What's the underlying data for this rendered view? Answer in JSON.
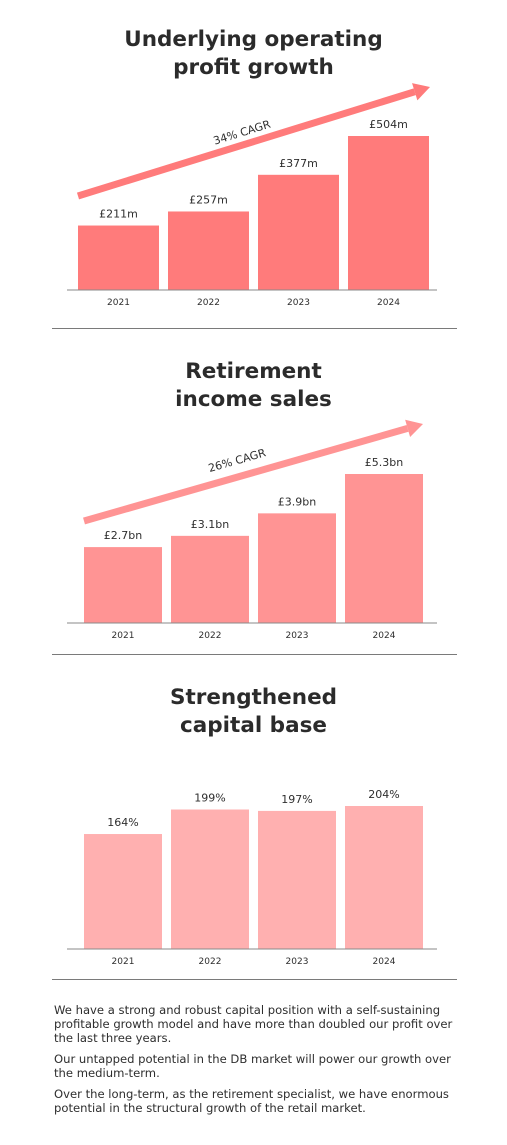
{
  "charts": [
    {
      "title_lines": [
        "Underlying operating",
        "profit growth"
      ],
      "cagr_label": "34% CAGR",
      "color": "#ff7b7b",
      "arrow_color": "#ff7b7b",
      "chart_data": {
        "type": "bar",
        "categories": [
          "2021",
          "2022",
          "2023",
          "2024"
        ],
        "values": [
          211,
          257,
          377,
          504
        ],
        "value_labels": [
          "£211m",
          "£257m",
          "£377m",
          "£504m"
        ],
        "ylim": [
          0,
          504
        ]
      }
    },
    {
      "title_lines": [
        "Retirement",
        "income sales"
      ],
      "cagr_label": "26% CAGR",
      "color": "#ff9494",
      "arrow_color": "#ff9494",
      "chart_data": {
        "type": "bar",
        "categories": [
          "2021",
          "2022",
          "2023",
          "2024"
        ],
        "values": [
          2.7,
          3.1,
          3.9,
          5.3
        ],
        "value_labels": [
          "£2.7bn",
          "£3.1bn",
          "£3.9bn",
          "£5.3bn"
        ],
        "ylim": [
          0,
          5.3
        ]
      }
    },
    {
      "title_lines": [
        "Strengthened",
        "capital base"
      ],
      "cagr_label": "",
      "color": "#ffb0b0",
      "arrow_color": "",
      "chart_data": {
        "type": "bar",
        "categories": [
          "2021",
          "2022",
          "2023",
          "2024"
        ],
        "values": [
          164,
          199,
          197,
          204
        ],
        "value_labels": [
          "164%",
          "199%",
          "197%",
          "204%"
        ],
        "ylim": [
          0,
          204
        ]
      }
    }
  ],
  "paragraphs": [
    "We have a strong and robust capital position with a self-sustaining profitable growth model and have more than doubled our profit over the last three years.",
    "Our untapped potential in the DB market will power our growth over the medium-term.",
    "Over the long-term, as the retirement specialist, we have enormous potential in the structural growth of the retail market."
  ]
}
